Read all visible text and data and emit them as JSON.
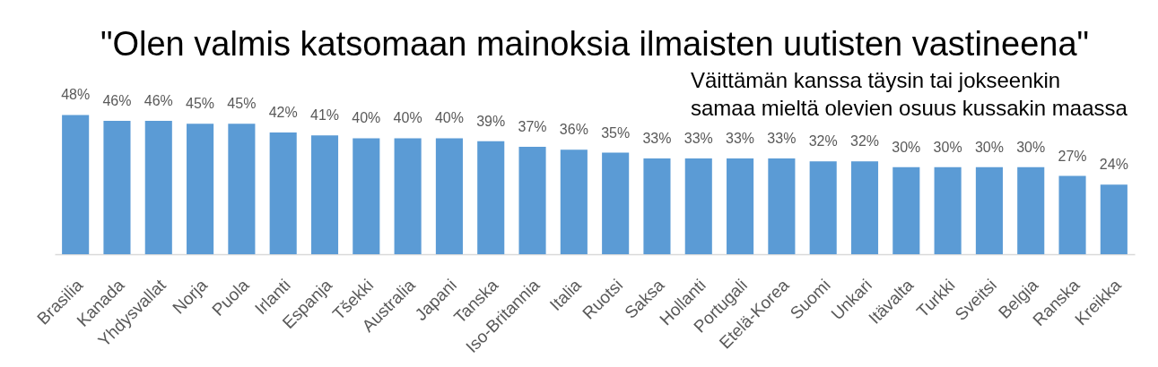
{
  "chart_data": {
    "type": "bar",
    "title": "\"Olen valmis katsomaan mainoksia ilmaisten uutisten vastineena\"",
    "subtitle": "Väittämän kanssa täysin tai jokseenkin samaa mieltä olevien osuus kussakin maassa",
    "categories": [
      "Brasilia",
      "Kanada",
      "Yhdysvallat",
      "Norja",
      "Puola",
      "Irlanti",
      "Espanja",
      "Tšekki",
      "Australia",
      "Japani",
      "Tanska",
      "Iso-Britannia",
      "Italia",
      "Ruotsi",
      "Saksa",
      "Hollanti",
      "Portugali",
      "Etelä-Korea",
      "Suomi",
      "Unkari",
      "Itävalta",
      "Turkki",
      "Sveitsi",
      "Belgia",
      "Ranska",
      "Kreikka"
    ],
    "values": [
      48,
      46,
      46,
      45,
      45,
      42,
      41,
      40,
      40,
      40,
      39,
      37,
      36,
      35,
      33,
      33,
      33,
      33,
      32,
      32,
      30,
      30,
      30,
      30,
      27,
      24
    ],
    "value_labels": [
      "48%",
      "46%",
      "46%",
      "45%",
      "45%",
      "42%",
      "41%",
      "40%",
      "40%",
      "40%",
      "39%",
      "37%",
      "36%",
      "35%",
      "33%",
      "33%",
      "33%",
      "33%",
      "32%",
      "32%",
      "30%",
      "30%",
      "30%",
      "30%",
      "27%",
      "24%"
    ],
    "color": "#5b9bd5",
    "tick_labels": "x",
    "grid": false
  }
}
